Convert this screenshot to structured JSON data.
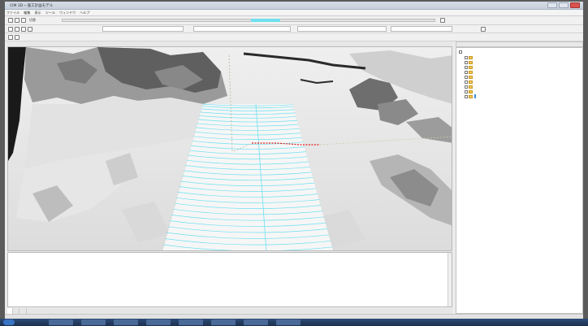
{
  "window": {
    "title": "CIM 3D ─ 施工計画モデル"
  },
  "menu": [
    "ファイル",
    "編集",
    "表示",
    "ツール",
    "ウィンドウ",
    "ヘルプ"
  ],
  "toolbar1": {
    "label": "切替"
  },
  "toolbar2": {
    "fields": [
      "",
      "",
      "",
      ""
    ]
  },
  "slider": {
    "position": 0.55
  },
  "viewport": {
    "label": ""
  },
  "log": {
    "lines": [
      "",
      "",
      "",
      "",
      "",
      "",
      "",
      ""
    ],
    "tabs": [
      "",
      "",
      ""
    ]
  },
  "panel": {
    "tabs": [
      "",
      "",
      ""
    ],
    "items": [
      {
        "label": "",
        "type": "root"
      },
      {
        "label": "",
        "type": "folder"
      },
      {
        "label": "",
        "type": "folder"
      },
      {
        "label": "",
        "type": "folder"
      },
      {
        "label": "",
        "type": "folder"
      },
      {
        "label": "",
        "type": "folder"
      },
      {
        "label": "",
        "type": "folder"
      },
      {
        "label": "",
        "type": "folder"
      },
      {
        "label": "",
        "type": "folder"
      },
      {
        "label": "",
        "type": "folder",
        "selected": true
      }
    ]
  },
  "status": {
    "text": ""
  },
  "taskbar": {
    "clock": ""
  },
  "colors": {
    "contour": "#6fe0ef",
    "marker": "#e02020",
    "selection": "#3d8fe0"
  }
}
